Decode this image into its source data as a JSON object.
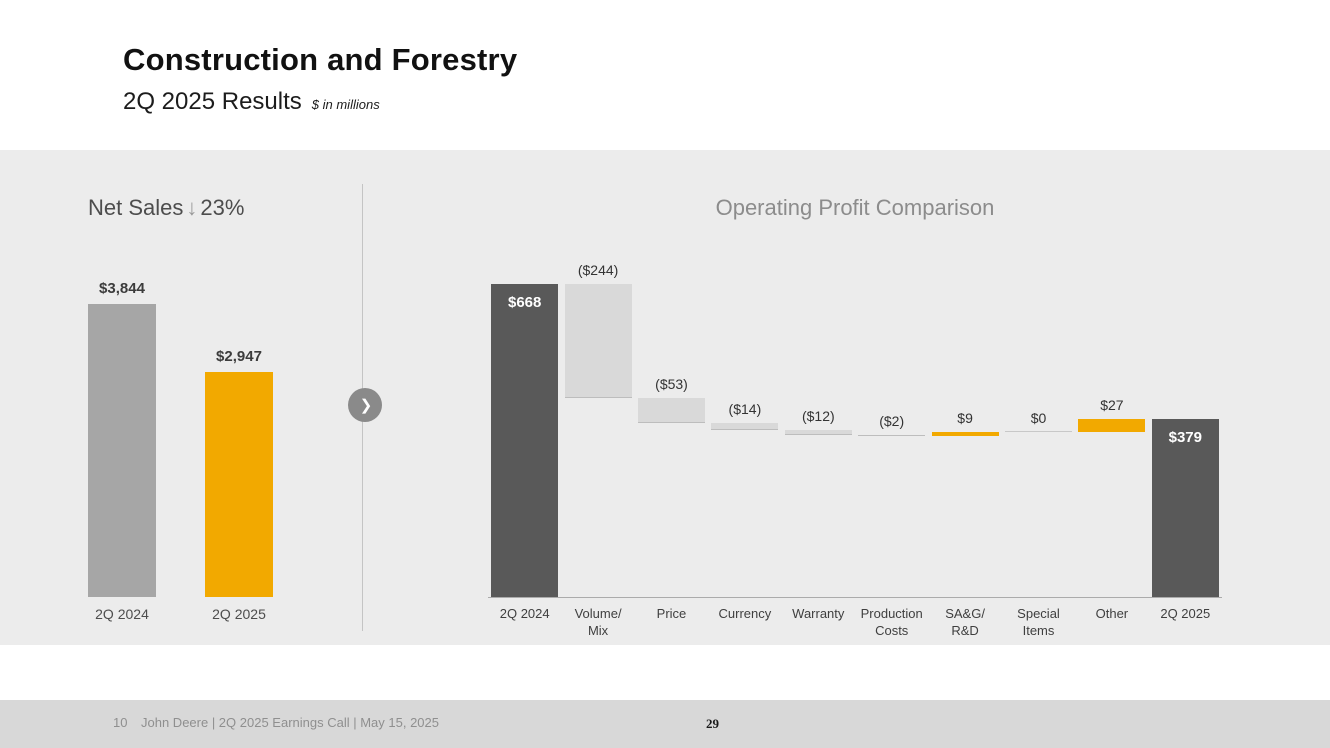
{
  "header": {
    "title": "Construction and Forestry",
    "subtitle": "2Q 2025 Results",
    "units_note": "$ in millions"
  },
  "net_sales_section": {
    "title": "Net Sales",
    "arrow_icon": "↓",
    "change": "23%"
  },
  "operating_profit_section": {
    "title": "Operating Profit Comparison"
  },
  "divider": {
    "chevron_icon": "❯"
  },
  "footer": {
    "slide_number": "10",
    "caption": "John Deere | 2Q 2025 Earnings Call | May 15, 2025",
    "page_number": "29"
  },
  "colors": {
    "accent_yellow": "#F2A900",
    "dark_gray_bar": "#595959",
    "medium_gray_bar": "#A6A6A6",
    "light_gray_bar": "#D9D9D9",
    "band_background": "#ECECEC"
  },
  "chart_data": [
    {
      "type": "bar",
      "title": "Net Sales ↓23%",
      "categories": [
        "2Q 2024",
        "2Q 2025"
      ],
      "values": [
        3844,
        2947
      ],
      "data_labels": [
        "$3,844",
        "$2,947"
      ],
      "bar_colors": [
        "#A6A6A6",
        "#F2A900"
      ],
      "xlabel": "",
      "ylabel": "",
      "ylim": [
        0,
        4160
      ],
      "grid": false,
      "legend": false
    },
    {
      "type": "bar",
      "subtype": "waterfall",
      "title": "Operating Profit Comparison",
      "categories": [
        "2Q 2024",
        "Volume/\nMix",
        "Price",
        "Currency",
        "Warranty",
        "Production\nCosts",
        "SA&G/\nR&D",
        "Special\nItems",
        "Other",
        "2Q 2025"
      ],
      "values": [
        668,
        -244,
        -53,
        -14,
        -12,
        -2,
        9,
        0,
        27,
        379
      ],
      "data_labels": [
        "$668",
        "($244)",
        "($53)",
        "($14)",
        "($12)",
        "($2)",
        "$9",
        "$0",
        "$27",
        "$379"
      ],
      "bar_types": [
        "total",
        "decrease",
        "decrease",
        "decrease",
        "decrease",
        "decrease",
        "increase",
        "zero",
        "increase",
        "total"
      ],
      "colors": {
        "total": "#595959",
        "decrease": "#D9D9D9",
        "increase": "#F2A900",
        "zero": "#C8C8C8"
      },
      "xlabel": "",
      "ylabel": "",
      "ylim": [
        0,
        700
      ],
      "grid": false,
      "legend": false
    }
  ]
}
